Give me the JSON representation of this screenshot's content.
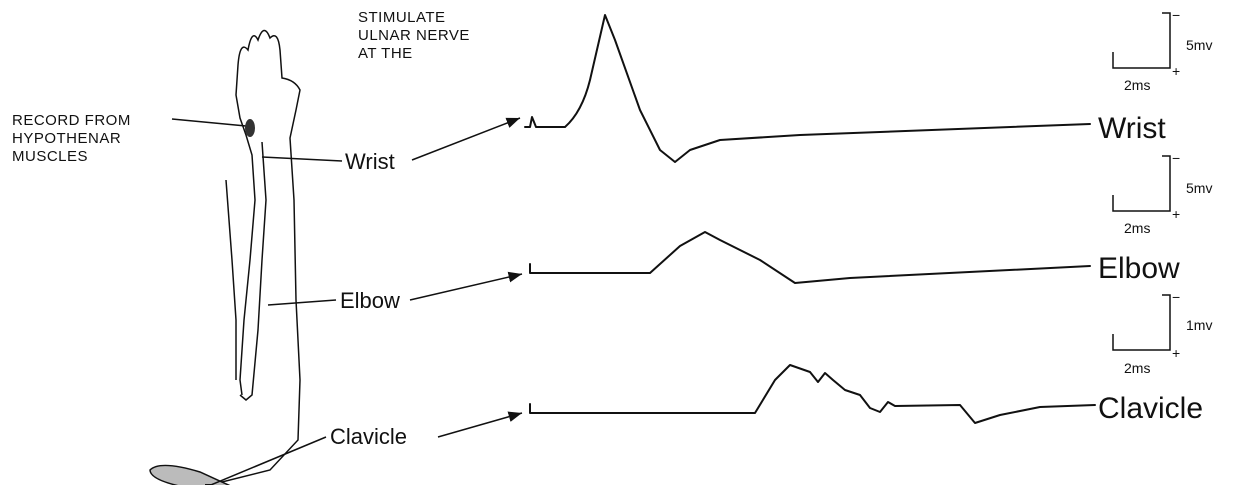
{
  "header": {
    "stimulate": [
      "STIMULATE",
      "ULNAR NERVE",
      "AT THE"
    ]
  },
  "record_label": [
    "RECORD FROM",
    "HYPOTHENAR",
    "MUSCLES"
  ],
  "sites": [
    {
      "label": "Wrist",
      "trace_label": "Wrist",
      "scale": {
        "minus": "−",
        "plus": "+",
        "amplitude": "5mv",
        "time": "2ms"
      }
    },
    {
      "label": "Elbow",
      "trace_label": "Elbow",
      "scale": {
        "minus": "−",
        "plus": "+",
        "amplitude": "5mv",
        "time": "2ms"
      }
    },
    {
      "label": "Clavicle",
      "trace_label": "Clavicle",
      "scale": {
        "minus": "−",
        "plus": "+",
        "amplitude": "1mv",
        "time": "2ms"
      }
    }
  ]
}
